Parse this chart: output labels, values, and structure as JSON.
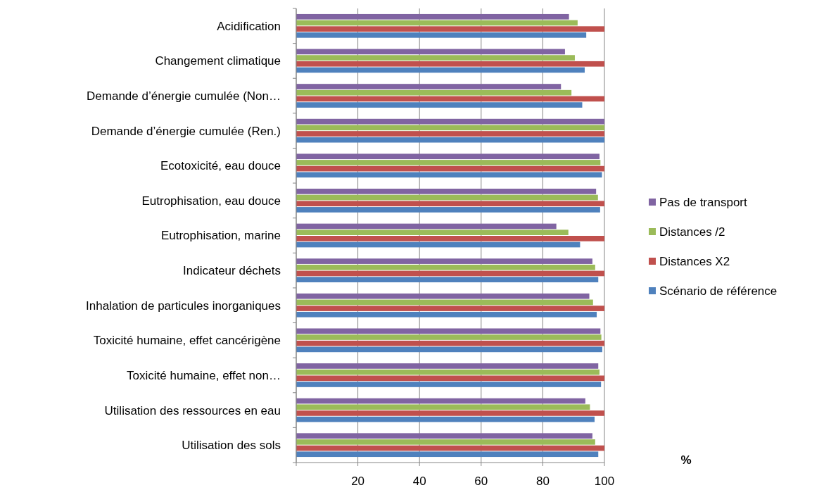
{
  "chart_data": {
    "type": "bar",
    "orientation": "horizontal",
    "annotations": [
      "%"
    ],
    "categories": [
      "Acidification",
      "Changement climatique",
      "Demande d’énergie cumulée (Non…",
      "Demande d’énergie cumulée (Ren.)",
      "Ecotoxicité, eau douce",
      "Eutrophisation, eau douce",
      "Eutrophisation, marine",
      "Indicateur déchets",
      "Inhalation de particules inorganiques",
      "Toxicité humaine, effet cancérigène",
      "Toxicité humaine, effet non…",
      "Utilisation des ressources en eau",
      "Utilisation des sols"
    ],
    "series": [
      {
        "name": "Pas de transport",
        "color": "#8064a2",
        "values": [
          88.5,
          87.2,
          85.9,
          100,
          98.4,
          97.3,
          84.4,
          96.1,
          95.1,
          98.7,
          98.0,
          93.8,
          96.1
        ]
      },
      {
        "name": "Distances /2",
        "color": "#9bbb59",
        "values": [
          91.3,
          90.4,
          89.3,
          100,
          98.7,
          97.9,
          88.3,
          97.0,
          96.3,
          99.0,
          98.4,
          95.3,
          97.0
        ]
      },
      {
        "name": "Distances X2",
        "color": "#c0504d",
        "values": [
          100,
          100,
          100,
          100,
          100,
          100,
          100,
          100,
          100,
          100,
          100,
          100,
          100
        ]
      },
      {
        "name": "Scénario de référence",
        "color": "#4f81bd",
        "values": [
          94.1,
          93.6,
          92.8,
          100,
          99.2,
          98.6,
          92.1,
          98.0,
          97.5,
          99.3,
          98.9,
          96.8,
          98.0
        ]
      }
    ],
    "xlim": [
      0,
      100
    ],
    "xticks": [
      {
        "value": 0,
        "label": null
      },
      20,
      40,
      60,
      80,
      100
    ],
    "grid": "x",
    "legend": "right"
  }
}
